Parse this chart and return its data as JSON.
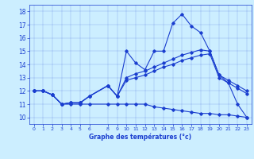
{
  "xlabel": "Graphe des températures (°c)",
  "background_color": "#cceeff",
  "line_color": "#1a3ecf",
  "x_hours": [
    0,
    1,
    2,
    3,
    4,
    5,
    6,
    8,
    9,
    10,
    11,
    12,
    13,
    14,
    15,
    16,
    17,
    18,
    19,
    20,
    21,
    22,
    23
  ],
  "line_max": [
    12,
    12,
    11.7,
    11,
    11.1,
    11.1,
    11.6,
    12.4,
    11.6,
    15,
    14.1,
    13.6,
    15,
    15,
    17.1,
    17.8,
    16.9,
    16.4,
    15,
    13.2,
    12.6,
    11,
    10
  ],
  "line_avg": [
    12,
    12,
    11.7,
    11,
    11.1,
    11.1,
    11.6,
    12.4,
    11.6,
    13.0,
    13.3,
    13.5,
    13.8,
    14.1,
    14.4,
    14.7,
    14.9,
    15.1,
    15.0,
    13.2,
    12.8,
    12.4,
    12.0
  ],
  "line_cur": [
    12,
    12,
    11.7,
    11,
    11.1,
    11.1,
    11.6,
    12.4,
    11.6,
    12.8,
    13.0,
    13.2,
    13.5,
    13.8,
    14.0,
    14.3,
    14.5,
    14.7,
    14.8,
    13.0,
    12.6,
    12.2,
    11.8
  ],
  "line_min": [
    12,
    12,
    11.7,
    11,
    11,
    11,
    11,
    11,
    11,
    11,
    11,
    11,
    10.8,
    10.7,
    10.6,
    10.5,
    10.4,
    10.3,
    10.3,
    10.2,
    10.2,
    10.1,
    10
  ],
  "ylim": [
    9.5,
    18.5
  ],
  "yticks": [
    10,
    11,
    12,
    13,
    14,
    15,
    16,
    17,
    18
  ],
  "xlim": [
    -0.5,
    23.5
  ],
  "xticks": [
    0,
    1,
    2,
    3,
    4,
    5,
    6,
    8,
    9,
    10,
    11,
    12,
    13,
    14,
    15,
    16,
    17,
    18,
    19,
    20,
    21,
    22,
    23
  ]
}
